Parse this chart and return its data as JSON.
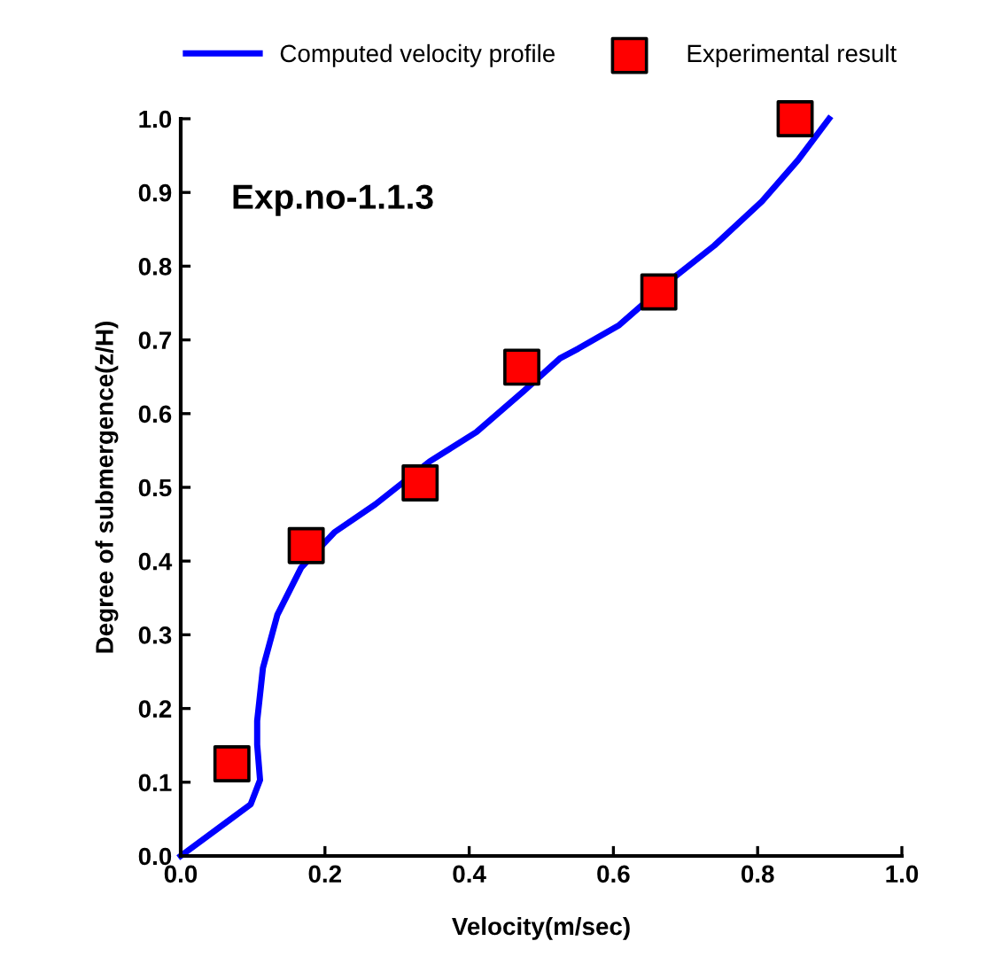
{
  "chart_data": {
    "type": "line",
    "xlabel": "Velocity(m/sec)",
    "ylabel": "Degree of submergence(z/H)",
    "annotations": [
      "Exp.no-1.1.3"
    ],
    "series": [
      {
        "name": "Computed velocity profile",
        "color": "#0000ff",
        "marker": "none",
        "line_style": "solid",
        "x": [
          0,
          0.097,
          0.11,
          0.106,
          0.106,
          0.114,
          0.134,
          0.167,
          0.213,
          0.27,
          0.345,
          0.41,
          0.476,
          0.526,
          0.551,
          0.608,
          0.683,
          0.74,
          0.806,
          0.856,
          0.899
        ],
        "values": [
          0,
          0.07,
          0.103,
          0.151,
          0.183,
          0.255,
          0.327,
          0.391,
          0.439,
          0.477,
          0.535,
          0.575,
          0.631,
          0.675,
          0.688,
          0.72,
          0.784,
          0.828,
          0.888,
          0.944,
          1.0
        ]
      },
      {
        "name": "Experimental result",
        "type": "scatter",
        "color": "#ff0000",
        "marker": "square",
        "x": [
          0.071,
          0.174,
          0.332,
          0.473,
          0.663,
          0.852
        ],
        "values": [
          0.125,
          0.421,
          0.506,
          0.663,
          0.765,
          1.0
        ]
      }
    ],
    "xlim": [
      0,
      1.0
    ],
    "ylim": [
      0,
      1.0
    ],
    "xticks": [
      {
        "value": 0,
        "label": "0.0"
      },
      0.2,
      0.4,
      0.6,
      0.8,
      {
        "value": 1,
        "label": "1.0"
      }
    ],
    "yticks": [
      {
        "value": 0,
        "label": "0.0"
      },
      0.1,
      0.2,
      0.3,
      0.4,
      0.5,
      0.6,
      0.7,
      0.8,
      0.9,
      {
        "value": 1,
        "label": "1.0"
      }
    ],
    "grid": false,
    "legend": "top"
  }
}
